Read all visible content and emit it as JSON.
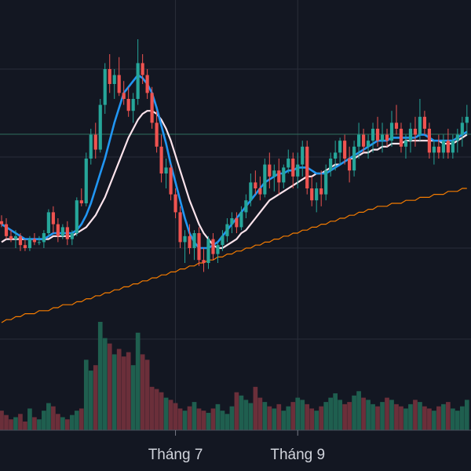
{
  "chart_data": {
    "type": "candlestick",
    "title": "",
    "xlabel": "",
    "ylabel": "",
    "x_tick_labels": [
      "Tháng 7",
      "Tháng 9"
    ],
    "y_tick_labels": [],
    "grid": true,
    "legend": "none",
    "ylim": [
      0,
      100
    ],
    "volume_ylim": [
      0,
      100
    ],
    "colors": {
      "background": "#131722",
      "grid": "#2a2e39",
      "up": "#26a69a",
      "down": "#ef5350",
      "up_volume": "#1f5f4f",
      "down_volume": "#6b2f3a",
      "ma_short": "#2196f3",
      "ma_medium": "#fce4ec",
      "ma_long": "#f57c00",
      "crosshair_line": "#2f6f5f",
      "axis_text": "#d1d4dc"
    },
    "ohlc": [
      [
        39,
        41,
        37,
        38
      ],
      [
        38,
        40,
        33,
        34
      ],
      [
        34,
        36,
        32,
        33
      ],
      [
        33,
        36,
        30,
        34
      ],
      [
        34,
        35,
        29,
        31
      ],
      [
        31,
        33,
        29,
        30
      ],
      [
        30,
        34,
        29,
        33
      ],
      [
        33,
        35,
        31,
        32
      ],
      [
        32,
        34,
        31,
        32
      ],
      [
        32,
        36,
        30,
        35
      ],
      [
        35,
        43,
        34,
        42
      ],
      [
        42,
        44,
        35,
        38
      ],
      [
        38,
        40,
        32,
        34
      ],
      [
        34,
        38,
        33,
        37
      ],
      [
        37,
        39,
        31,
        33
      ],
      [
        33,
        36,
        31,
        35
      ],
      [
        35,
        47,
        34,
        46
      ],
      [
        46,
        50,
        44,
        45
      ],
      [
        45,
        62,
        44,
        60
      ],
      [
        60,
        70,
        58,
        68
      ],
      [
        68,
        72,
        60,
        63
      ],
      [
        63,
        80,
        62,
        78
      ],
      [
        78,
        92,
        75,
        90
      ],
      [
        90,
        95,
        82,
        85
      ],
      [
        85,
        90,
        80,
        88
      ],
      [
        88,
        94,
        81,
        82
      ],
      [
        82,
        86,
        78,
        80
      ],
      [
        80,
        84,
        74,
        76
      ],
      [
        76,
        82,
        72,
        80
      ],
      [
        80,
        100,
        78,
        92
      ],
      [
        92,
        95,
        85,
        88
      ],
      [
        88,
        90,
        80,
        82
      ],
      [
        82,
        84,
        70,
        72
      ],
      [
        72,
        76,
        62,
        64
      ],
      [
        64,
        68,
        52,
        55
      ],
      [
        55,
        60,
        50,
        57
      ],
      [
        57,
        58,
        46,
        48
      ],
      [
        48,
        50,
        40,
        42
      ],
      [
        42,
        44,
        30,
        32
      ],
      [
        32,
        36,
        25,
        34
      ],
      [
        34,
        38,
        28,
        30
      ],
      [
        30,
        36,
        26,
        35
      ],
      [
        35,
        37,
        24,
        26
      ],
      [
        26,
        30,
        22,
        25
      ],
      [
        25,
        34,
        23,
        33
      ],
      [
        33,
        35,
        26,
        28
      ],
      [
        28,
        32,
        25,
        31
      ],
      [
        31,
        36,
        29,
        34
      ],
      [
        34,
        40,
        32,
        38
      ],
      [
        38,
        42,
        35,
        40
      ],
      [
        40,
        42,
        35,
        37
      ],
      [
        37,
        44,
        36,
        42
      ],
      [
        42,
        48,
        40,
        46
      ],
      [
        46,
        55,
        44,
        52
      ],
      [
        52,
        56,
        48,
        50
      ],
      [
        50,
        54,
        46,
        48
      ],
      [
        48,
        60,
        47,
        58
      ],
      [
        58,
        62,
        50,
        54
      ],
      [
        54,
        58,
        49,
        56
      ],
      [
        56,
        60,
        48,
        52
      ],
      [
        52,
        58,
        50,
        57
      ],
      [
        57,
        63,
        55,
        60
      ],
      [
        60,
        62,
        50,
        54
      ],
      [
        54,
        62,
        50,
        58
      ],
      [
        58,
        66,
        54,
        64
      ],
      [
        64,
        66,
        48,
        50
      ],
      [
        50,
        54,
        44,
        46
      ],
      [
        46,
        52,
        42,
        50
      ],
      [
        50,
        56,
        44,
        48
      ],
      [
        48,
        58,
        46,
        56
      ],
      [
        56,
        62,
        54,
        60
      ],
      [
        60,
        66,
        56,
        62
      ],
      [
        62,
        67,
        58,
        66
      ],
      [
        66,
        68,
        58,
        60
      ],
      [
        60,
        64,
        52,
        56
      ],
      [
        56,
        66,
        54,
        64
      ],
      [
        64,
        72,
        60,
        68
      ],
      [
        68,
        70,
        62,
        64
      ],
      [
        64,
        68,
        60,
        66
      ],
      [
        66,
        72,
        62,
        70
      ],
      [
        70,
        74,
        64,
        66
      ],
      [
        66,
        72,
        62,
        68
      ],
      [
        68,
        70,
        64,
        66
      ],
      [
        66,
        76,
        64,
        72
      ],
      [
        72,
        78,
        68,
        70
      ],
      [
        70,
        72,
        62,
        64
      ],
      [
        64,
        68,
        60,
        66
      ],
      [
        66,
        72,
        62,
        70
      ],
      [
        70,
        74,
        64,
        68
      ],
      [
        68,
        80,
        66,
        74
      ],
      [
        74,
        76,
        68,
        70
      ],
      [
        70,
        72,
        60,
        62
      ],
      [
        62,
        66,
        58,
        64
      ],
      [
        64,
        68,
        60,
        62
      ],
      [
        62,
        68,
        60,
        66
      ],
      [
        66,
        70,
        60,
        62
      ],
      [
        62,
        68,
        60,
        66
      ],
      [
        66,
        70,
        62,
        68
      ],
      [
        68,
        74,
        64,
        72
      ],
      [
        72,
        78,
        68,
        74
      ]
    ],
    "ma_short": [
      38,
      37,
      36,
      35,
      34,
      33,
      33,
      33,
      33,
      33,
      34,
      35,
      35,
      35,
      35,
      35,
      36,
      38,
      41,
      45,
      50,
      55,
      60,
      66,
      72,
      77,
      82,
      84,
      86,
      88,
      87,
      85,
      82,
      77,
      71,
      65,
      58,
      52,
      46,
      40,
      35,
      32,
      30,
      30,
      30,
      31,
      32,
      34,
      36,
      38,
      40,
      42,
      44,
      46,
      48,
      50,
      52,
      53,
      54,
      55,
      55,
      56,
      56,
      57,
      57,
      57,
      56,
      55,
      55,
      55,
      56,
      57,
      58,
      59,
      60,
      61,
      62,
      63,
      64,
      65,
      66,
      66,
      66,
      67,
      67,
      67,
      67,
      67,
      67,
      68,
      68,
      67,
      66,
      66,
      66,
      66,
      66,
      67,
      68,
      69
    ],
    "ma_medium": [
      32,
      33,
      33,
      33,
      33,
      33,
      33,
      33,
      33,
      33,
      33,
      34,
      34,
      34,
      34,
      34,
      35,
      36,
      37,
      39,
      41,
      44,
      47,
      51,
      55,
      59,
      63,
      67,
      70,
      73,
      75,
      76,
      76,
      75,
      73,
      70,
      66,
      61,
      56,
      51,
      46,
      42,
      38,
      35,
      33,
      31,
      30,
      30,
      31,
      32,
      33,
      35,
      36,
      38,
      40,
      42,
      44,
      46,
      47,
      48,
      49,
      50,
      51,
      52,
      53,
      54,
      54,
      55,
      55,
      56,
      57,
      58,
      58,
      59,
      60,
      60,
      61,
      62,
      62,
      63,
      63,
      64,
      64,
      65,
      65,
      65,
      66,
      66,
      66,
      66,
      66,
      66,
      66,
      66,
      65,
      65,
      65,
      66,
      67,
      68
    ],
    "ma_long": [
      5,
      6,
      6,
      7,
      7,
      8,
      8,
      8,
      9,
      9,
      9,
      10,
      10,
      11,
      11,
      11,
      12,
      12,
      13,
      13,
      14,
      14,
      15,
      15,
      16,
      16,
      17,
      17,
      18,
      18,
      19,
      19,
      20,
      20,
      21,
      21,
      22,
      22,
      23,
      23,
      24,
      24,
      25,
      25,
      26,
      26,
      27,
      27,
      28,
      28,
      29,
      29,
      30,
      30,
      31,
      31,
      32,
      32,
      33,
      33,
      34,
      34,
      35,
      35,
      36,
      36,
      37,
      37,
      38,
      38,
      39,
      39,
      40,
      40,
      41,
      41,
      42,
      42,
      43,
      43,
      44,
      44,
      44,
      45,
      45,
      45,
      46,
      46,
      46,
      47,
      47,
      47,
      48,
      48,
      48,
      49,
      49,
      49,
      50,
      50
    ],
    "volume": [
      18,
      14,
      10,
      12,
      15,
      8,
      20,
      12,
      10,
      18,
      25,
      22,
      15,
      12,
      10,
      14,
      18,
      20,
      65,
      55,
      60,
      100,
      85,
      80,
      70,
      75,
      68,
      72,
      60,
      90,
      70,
      65,
      40,
      38,
      35,
      30,
      28,
      25,
      20,
      18,
      22,
      26,
      20,
      18,
      16,
      20,
      24,
      18,
      15,
      22,
      35,
      32,
      28,
      25,
      40,
      30,
      26,
      22,
      20,
      24,
      18,
      22,
      26,
      30,
      28,
      24,
      20,
      18,
      22,
      26,
      30,
      34,
      28,
      24,
      26,
      32,
      36,
      30,
      28,
      24,
      22,
      26,
      30,
      28,
      24,
      22,
      20,
      24,
      28,
      26,
      22,
      20,
      18,
      22,
      24,
      26,
      20,
      18,
      22,
      28
    ],
    "x_tick_positions": [
      37,
      63
    ]
  }
}
